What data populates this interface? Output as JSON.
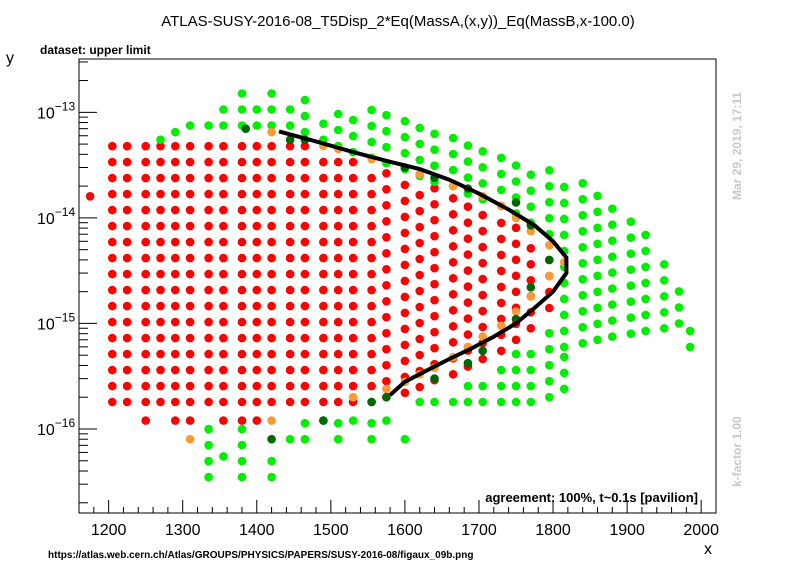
{
  "chart_data": {
    "type": "scatter",
    "title": "ATLAS-SUSY-2016-08_T5Disp_2*Eq(MassA,(x,y))_Eq(MassB,x-100.0)",
    "subtitle": "dataset: upper limit",
    "xlabel": "x",
    "ylabel": "y",
    "xlim": [
      1160,
      2020
    ],
    "ylim": [
      1.6e-17,
      3.2e-13
    ],
    "yscale": "log",
    "x_ticks": [
      1200,
      1300,
      1400,
      1500,
      1600,
      1700,
      1800,
      1900,
      2000
    ],
    "y_ticks": [
      {
        "value": 1e-16,
        "label": "10",
        "exp": "−16"
      },
      {
        "value": 1e-15,
        "label": "10",
        "exp": "−15"
      },
      {
        "value": 1e-14,
        "label": "10",
        "exp": "−14"
      },
      {
        "value": 1e-13,
        "label": "10",
        "exp": "−13"
      }
    ],
    "agreement_text": "agreement: 100%, t~0.1s [pavilion]",
    "date_note": "Mar 29, 2019, 17:11",
    "kfactor_note": "k-factor 1.00",
    "source_url": "https://atlas.web.cern.ch/Atlas/GROUPS/PHYSICS/PAPERS/SUSY-2016-08/figaux_09b.png",
    "grid": false,
    "legend": "none",
    "colors": {
      "excluded": "#ff0000",
      "allowed": "#00ee00",
      "excluded_border": "#ff9933",
      "allowed_border": "#006600",
      "contour": "#000000"
    },
    "point_columns": [
      {
        "x": 1205,
        "ymin": 1.8e-16,
        "ymax": 4.8e-14,
        "color": "excluded"
      },
      {
        "x": 1225,
        "ymin": 1.8e-16,
        "ymax": 4.8e-14,
        "color": "excluded"
      },
      {
        "x": 1250,
        "ymin": 1.8e-16,
        "ymax": 5.4e-14,
        "color": "excluded"
      },
      {
        "x": 1270,
        "ymin": 1.8e-16,
        "ymax": 5.4e-14,
        "color": "excluded"
      },
      {
        "x": 1290,
        "ymin": 1.8e-16,
        "ymax": 5.8e-14,
        "color": "excluded"
      },
      {
        "x": 1310,
        "ymin": 1.8e-16,
        "ymax": 5.8e-14,
        "color": "excluded"
      },
      {
        "x": 1335,
        "ymin": 1.8e-16,
        "ymax": 5.8e-14,
        "color": "excluded"
      },
      {
        "x": 1355,
        "ymin": 1.8e-16,
        "ymax": 5.8e-14,
        "color": "excluded"
      },
      {
        "x": 1380,
        "ymin": 1.8e-16,
        "ymax": 5.8e-14,
        "color": "excluded"
      },
      {
        "x": 1400,
        "ymin": 1.8e-16,
        "ymax": 5.8e-14,
        "color": "excluded"
      },
      {
        "x": 1420,
        "ymin": 1.8e-16,
        "ymax": 5.8e-14,
        "color": "excluded"
      },
      {
        "x": 1445,
        "ymin": 1.8e-16,
        "ymax": 5.8e-14,
        "color": "excluded"
      },
      {
        "x": 1465,
        "ymin": 1.8e-16,
        "ymax": 5e-14,
        "color": "excluded"
      },
      {
        "x": 1490,
        "ymin": 1.8e-16,
        "ymax": 4.5e-14,
        "color": "excluded"
      },
      {
        "x": 1510,
        "ymin": 1.8e-16,
        "ymax": 4e-14,
        "color": "excluded"
      },
      {
        "x": 1530,
        "ymin": 1.8e-16,
        "ymax": 3.6e-14,
        "color": "excluded"
      },
      {
        "x": 1555,
        "ymin": 1.8e-16,
        "ymax": 3.2e-14,
        "color": "excluded"
      },
      {
        "x": 1575,
        "ymin": 2e-16,
        "ymax": 2.8e-14,
        "color": "excluded"
      },
      {
        "x": 1600,
        "ymin": 2.2e-16,
        "ymax": 2.5e-14,
        "color": "excluded"
      },
      {
        "x": 1620,
        "ymin": 2.5e-16,
        "ymax": 2.2e-14,
        "color": "excluded"
      },
      {
        "x": 1640,
        "ymin": 2.9e-16,
        "ymax": 2e-14,
        "color": "excluded"
      },
      {
        "x": 1665,
        "ymin": 3.3e-16,
        "ymax": 1.7e-14,
        "color": "excluded"
      },
      {
        "x": 1685,
        "ymin": 3.9e-16,
        "ymax": 1.5e-14,
        "color": "excluded"
      },
      {
        "x": 1705,
        "ymin": 4.6e-16,
        "ymax": 1.3e-14,
        "color": "excluded"
      },
      {
        "x": 1730,
        "ymin": 5.5e-16,
        "ymax": 1.1e-14,
        "color": "excluded"
      },
      {
        "x": 1750,
        "ymin": 7e-16,
        "ymax": 8.5e-15,
        "color": "excluded"
      },
      {
        "x": 1770,
        "ymin": 9e-16,
        "ymax": 6.5e-15,
        "color": "excluded"
      },
      {
        "x": 1795,
        "ymin": 1.4e-15,
        "ymax": 4.5e-15,
        "color": "excluded"
      },
      {
        "x": 1175,
        "ymin": 1.6e-14,
        "ymax": 1.6e-14,
        "color": "excluded"
      },
      {
        "x": 1250,
        "ymin": 1.2e-16,
        "ymax": 1.2e-16,
        "color": "excluded"
      },
      {
        "x": 1270,
        "ymin": 5.5e-14,
        "ymax": 5.5e-14,
        "color": "allowed"
      },
      {
        "x": 1290,
        "ymin": 6.5e-14,
        "ymax": 6.5e-14,
        "color": "allowed"
      },
      {
        "x": 1310,
        "ymin": 7.5e-14,
        "ymax": 8.5e-14,
        "color": "allowed"
      },
      {
        "x": 1335,
        "ymin": 7.5e-14,
        "ymax": 8.5e-14,
        "color": "allowed"
      },
      {
        "x": 1355,
        "ymin": 7.5e-14,
        "ymax": 1.1e-13,
        "color": "allowed"
      },
      {
        "x": 1380,
        "ymin": 7.5e-14,
        "ymax": 1.8e-13,
        "color": "allowed"
      },
      {
        "x": 1400,
        "ymin": 7.5e-14,
        "ymax": 1.1e-13,
        "color": "allowed"
      },
      {
        "x": 1420,
        "ymin": 7.5e-14,
        "ymax": 1.8e-13,
        "color": "allowed"
      },
      {
        "x": 1445,
        "ymin": 7.5e-14,
        "ymax": 1.1e-13,
        "color": "allowed"
      },
      {
        "x": 1465,
        "ymin": 6.5e-14,
        "ymax": 1.8e-13,
        "color": "allowed"
      },
      {
        "x": 1490,
        "ymin": 5.5e-14,
        "ymax": 1.1e-13,
        "color": "allowed"
      },
      {
        "x": 1510,
        "ymin": 4.8e-14,
        "ymax": 1.1e-13,
        "color": "allowed"
      },
      {
        "x": 1530,
        "ymin": 4.2e-14,
        "ymax": 1.1e-13,
        "color": "allowed"
      },
      {
        "x": 1555,
        "ymin": 3.7e-14,
        "ymax": 1.1e-13,
        "color": "allowed"
      },
      {
        "x": 1575,
        "ymin": 3.3e-14,
        "ymax": 1e-13,
        "color": "allowed"
      },
      {
        "x": 1600,
        "ymin": 2.9e-14,
        "ymax": 9e-14,
        "color": "allowed"
      },
      {
        "x": 1620,
        "ymin": 2.5e-14,
        "ymax": 8e-14,
        "color": "allowed"
      },
      {
        "x": 1640,
        "ymin": 2.2e-14,
        "ymax": 7e-14,
        "color": "allowed"
      },
      {
        "x": 1665,
        "ymin": 2e-14,
        "ymax": 6.5e-14,
        "color": "allowed"
      },
      {
        "x": 1685,
        "ymin": 1.7e-14,
        "ymax": 5.5e-14,
        "color": "allowed"
      },
      {
        "x": 1705,
        "ymin": 1.5e-14,
        "ymax": 5e-14,
        "color": "allowed"
      },
      {
        "x": 1730,
        "ymin": 1.3e-14,
        "ymax": 4.5e-14,
        "color": "allowed"
      },
      {
        "x": 1750,
        "ymin": 1.1e-14,
        "ymax": 4e-14,
        "color": "allowed"
      },
      {
        "x": 1770,
        "ymin": 9e-15,
        "ymax": 3.6e-14,
        "color": "allowed"
      },
      {
        "x": 1795,
        "ymin": 7e-15,
        "ymax": 3e-14,
        "color": "allowed"
      },
      {
        "x": 1815,
        "ymin": 6e-16,
        "ymax": 2.6e-14,
        "color": "allowed"
      },
      {
        "x": 1840,
        "ymin": 6.5e-16,
        "ymax": 2.2e-14,
        "color": "allowed"
      },
      {
        "x": 1860,
        "ymin": 7e-16,
        "ymax": 1.8e-14,
        "color": "allowed"
      },
      {
        "x": 1880,
        "ymin": 7.5e-16,
        "ymax": 1.5e-14,
        "color": "allowed"
      },
      {
        "x": 1905,
        "ymin": 8e-16,
        "ymax": 1.1e-14,
        "color": "allowed"
      },
      {
        "x": 1925,
        "ymin": 8.5e-16,
        "ymax": 7.5e-15,
        "color": "allowed"
      },
      {
        "x": 1950,
        "ymin": 9e-16,
        "ymax": 5e-15,
        "color": "allowed"
      },
      {
        "x": 1970,
        "ymin": 1e-15,
        "ymax": 2.2e-15,
        "color": "allowed"
      },
      {
        "x": 1985,
        "ymin": 6e-16,
        "ymax": 9e-16,
        "color": "allowed"
      },
      {
        "x": 1705,
        "ymin": 1.8e-16,
        "ymax": 3.2e-16,
        "color": "allowed"
      },
      {
        "x": 1730,
        "ymin": 1.8e-16,
        "ymax": 4.2e-16,
        "color": "allowed"
      },
      {
        "x": 1750,
        "ymin": 1.8e-16,
        "ymax": 5.5e-16,
        "color": "allowed"
      },
      {
        "x": 1770,
        "ymin": 1.8e-16,
        "ymax": 7e-16,
        "color": "allowed"
      },
      {
        "x": 1795,
        "ymin": 2e-16,
        "ymax": 1e-15,
        "color": "allowed"
      },
      {
        "x": 1815,
        "ymin": 2.4e-16,
        "ymax": 5e-16,
        "color": "allowed"
      },
      {
        "x": 1685,
        "ymin": 1.8e-16,
        "ymax": 2.8e-16,
        "color": "allowed"
      },
      {
        "x": 1665,
        "ymin": 1.8e-16,
        "ymax": 2.4e-16,
        "color": "allowed"
      },
      {
        "x": 1640,
        "ymin": 1.8e-16,
        "ymax": 2.2e-16,
        "color": "allowed"
      },
      {
        "x": 1620,
        "ymin": 1.8e-16,
        "ymax": 2e-16,
        "color": "allowed"
      },
      {
        "x": 1335,
        "ymin": 3.5e-17,
        "ymax": 1.2e-16,
        "color": "allowed"
      },
      {
        "x": 1355,
        "ymin": 5.5e-17,
        "ymax": 5.5e-17,
        "color": "allowed"
      },
      {
        "x": 1380,
        "ymin": 3.5e-17,
        "ymax": 1e-16,
        "color": "allowed"
      },
      {
        "x": 1420,
        "ymin": 3.5e-17,
        "ymax": 5.5e-17,
        "color": "allowed"
      },
      {
        "x": 1445,
        "ymin": 8e-17,
        "ymax": 8e-17,
        "color": "allowed"
      },
      {
        "x": 1465,
        "ymin": 8e-17,
        "ymax": 1.2e-16,
        "color": "allowed"
      },
      {
        "x": 1490,
        "ymin": 1.2e-16,
        "ymax": 1.2e-16,
        "color": "allowed"
      },
      {
        "x": 1510,
        "ymin": 8e-17,
        "ymax": 1.2e-16,
        "color": "allowed"
      },
      {
        "x": 1530,
        "ymin": 1.2e-16,
        "ymax": 1.2e-16,
        "color": "allowed"
      },
      {
        "x": 1555,
        "ymin": 8e-17,
        "ymax": 1.2e-16,
        "color": "allowed"
      },
      {
        "x": 1575,
        "ymin": 1.2e-16,
        "ymax": 1.2e-16,
        "color": "allowed"
      },
      {
        "x": 1600,
        "ymin": 8e-17,
        "ymax": 8e-17,
        "color": "allowed"
      },
      {
        "x": 1290,
        "ymin": 1.2e-16,
        "ymax": 1.2e-16,
        "color": "excluded"
      },
      {
        "x": 1310,
        "ymin": 1.2e-16,
        "ymax": 1.2e-16,
        "color": "excluded"
      },
      {
        "x": 1355,
        "ymin": 1.2e-16,
        "ymax": 1.2e-16,
        "color": "excluded"
      },
      {
        "x": 1380,
        "ymin": 1.2e-16,
        "ymax": 1.2e-16,
        "color": "excluded"
      },
      {
        "x": 1400,
        "ymin": 1.2e-16,
        "ymax": 1.2e-16,
        "color": "excluded"
      },
      {
        "x": 1310,
        "ymin": 8e-17,
        "ymax": 8e-17,
        "color": "excluded_border"
      },
      {
        "x": 1420,
        "ymin": 1.2e-16,
        "ymax": 1.2e-16,
        "color": "excluded_border"
      },
      {
        "x": 1490,
        "ymin": 1.2e-16,
        "ymax": 1.2e-16,
        "color": "allowed_border"
      },
      {
        "x": 1420,
        "ymin": 8e-17,
        "ymax": 8e-17,
        "color": "allowed_border"
      }
    ],
    "border_points": [
      {
        "x": 1420,
        "y": 6.5e-14,
        "color": "excluded_border"
      },
      {
        "x": 1490,
        "y": 4.8e-14,
        "color": "excluded_border"
      },
      {
        "x": 1510,
        "y": 4.5e-14,
        "color": "excluded_border"
      },
      {
        "x": 1555,
        "y": 3.6e-14,
        "color": "excluded_border"
      },
      {
        "x": 1620,
        "y": 2.6e-14,
        "color": "excluded_border"
      },
      {
        "x": 1665,
        "y": 2e-14,
        "color": "excluded_border"
      },
      {
        "x": 1705,
        "y": 1.6e-14,
        "color": "excluded_border"
      },
      {
        "x": 1730,
        "y": 1.3e-14,
        "color": "excluded_border"
      },
      {
        "x": 1750,
        "y": 1e-14,
        "color": "excluded_border"
      },
      {
        "x": 1770,
        "y": 7.5e-15,
        "color": "excluded_border"
      },
      {
        "x": 1795,
        "y": 5.5e-15,
        "color": "excluded_border"
      },
      {
        "x": 1815,
        "y": 3.8e-15,
        "color": "excluded_border"
      },
      {
        "x": 1795,
        "y": 2.8e-15,
        "color": "excluded_border"
      },
      {
        "x": 1770,
        "y": 1.8e-15,
        "color": "excluded_border"
      },
      {
        "x": 1750,
        "y": 1.3e-15,
        "color": "excluded_border"
      },
      {
        "x": 1730,
        "y": 9.5e-16,
        "color": "excluded_border"
      },
      {
        "x": 1705,
        "y": 7.5e-16,
        "color": "excluded_border"
      },
      {
        "x": 1685,
        "y": 6e-16,
        "color": "excluded_border"
      },
      {
        "x": 1665,
        "y": 4.8e-16,
        "color": "excluded_border"
      },
      {
        "x": 1640,
        "y": 3.8e-16,
        "color": "excluded_border"
      },
      {
        "x": 1620,
        "y": 3.3e-16,
        "color": "excluded_border"
      },
      {
        "x": 1600,
        "y": 2.8e-16,
        "color": "excluded_border"
      },
      {
        "x": 1575,
        "y": 2.4e-16,
        "color": "excluded_border"
      },
      {
        "x": 1530,
        "y": 2e-16,
        "color": "excluded_border"
      },
      {
        "x": 1445,
        "y": 5.5e-14,
        "color": "allowed_border"
      },
      {
        "x": 1465,
        "y": 5.5e-14,
        "color": "allowed_border"
      },
      {
        "x": 1600,
        "y": 3e-14,
        "color": "allowed_border"
      },
      {
        "x": 1640,
        "y": 2.4e-14,
        "color": "allowed_border"
      },
      {
        "x": 1685,
        "y": 1.9e-14,
        "color": "allowed_border"
      },
      {
        "x": 1750,
        "y": 1.4e-14,
        "color": "allowed_border"
      },
      {
        "x": 1770,
        "y": 8.5e-15,
        "color": "allowed_border"
      },
      {
        "x": 1795,
        "y": 4e-15,
        "color": "allowed_border"
      },
      {
        "x": 1770,
        "y": 2.2e-15,
        "color": "allowed_border"
      },
      {
        "x": 1750,
        "y": 1.1e-15,
        "color": "allowed_border"
      },
      {
        "x": 1705,
        "y": 5.5e-16,
        "color": "allowed_border"
      },
      {
        "x": 1685,
        "y": 4.2e-16,
        "color": "allowed_border"
      },
      {
        "x": 1640,
        "y": 3e-16,
        "color": "allowed_border"
      },
      {
        "x": 1575,
        "y": 2e-16,
        "color": "allowed_border"
      },
      {
        "x": 1555,
        "y": 1.8e-16,
        "color": "allowed_border"
      },
      {
        "x": 1385,
        "y": 7e-14,
        "color": "allowed_border"
      }
    ],
    "contour": [
      [
        1430,
        6.6e-14
      ],
      [
        1480,
        5.3e-14
      ],
      [
        1530,
        4.2e-14
      ],
      [
        1580,
        3.4e-14
      ],
      [
        1620,
        2.9e-14
      ],
      [
        1660,
        2.3e-14
      ],
      [
        1700,
        1.7e-14
      ],
      [
        1740,
        1.2e-14
      ],
      [
        1775,
        8.5e-15
      ],
      [
        1800,
        6e-15
      ],
      [
        1818,
        4.2e-15
      ],
      [
        1818,
        3e-15
      ],
      [
        1800,
        2e-15
      ],
      [
        1775,
        1.4e-15
      ],
      [
        1750,
        1e-15
      ],
      [
        1720,
        7.5e-16
      ],
      [
        1690,
        5.8e-16
      ],
      [
        1660,
        4.6e-16
      ],
      [
        1630,
        3.6e-16
      ],
      [
        1600,
        2.8e-16
      ],
      [
        1580,
        2.1e-16
      ]
    ]
  }
}
